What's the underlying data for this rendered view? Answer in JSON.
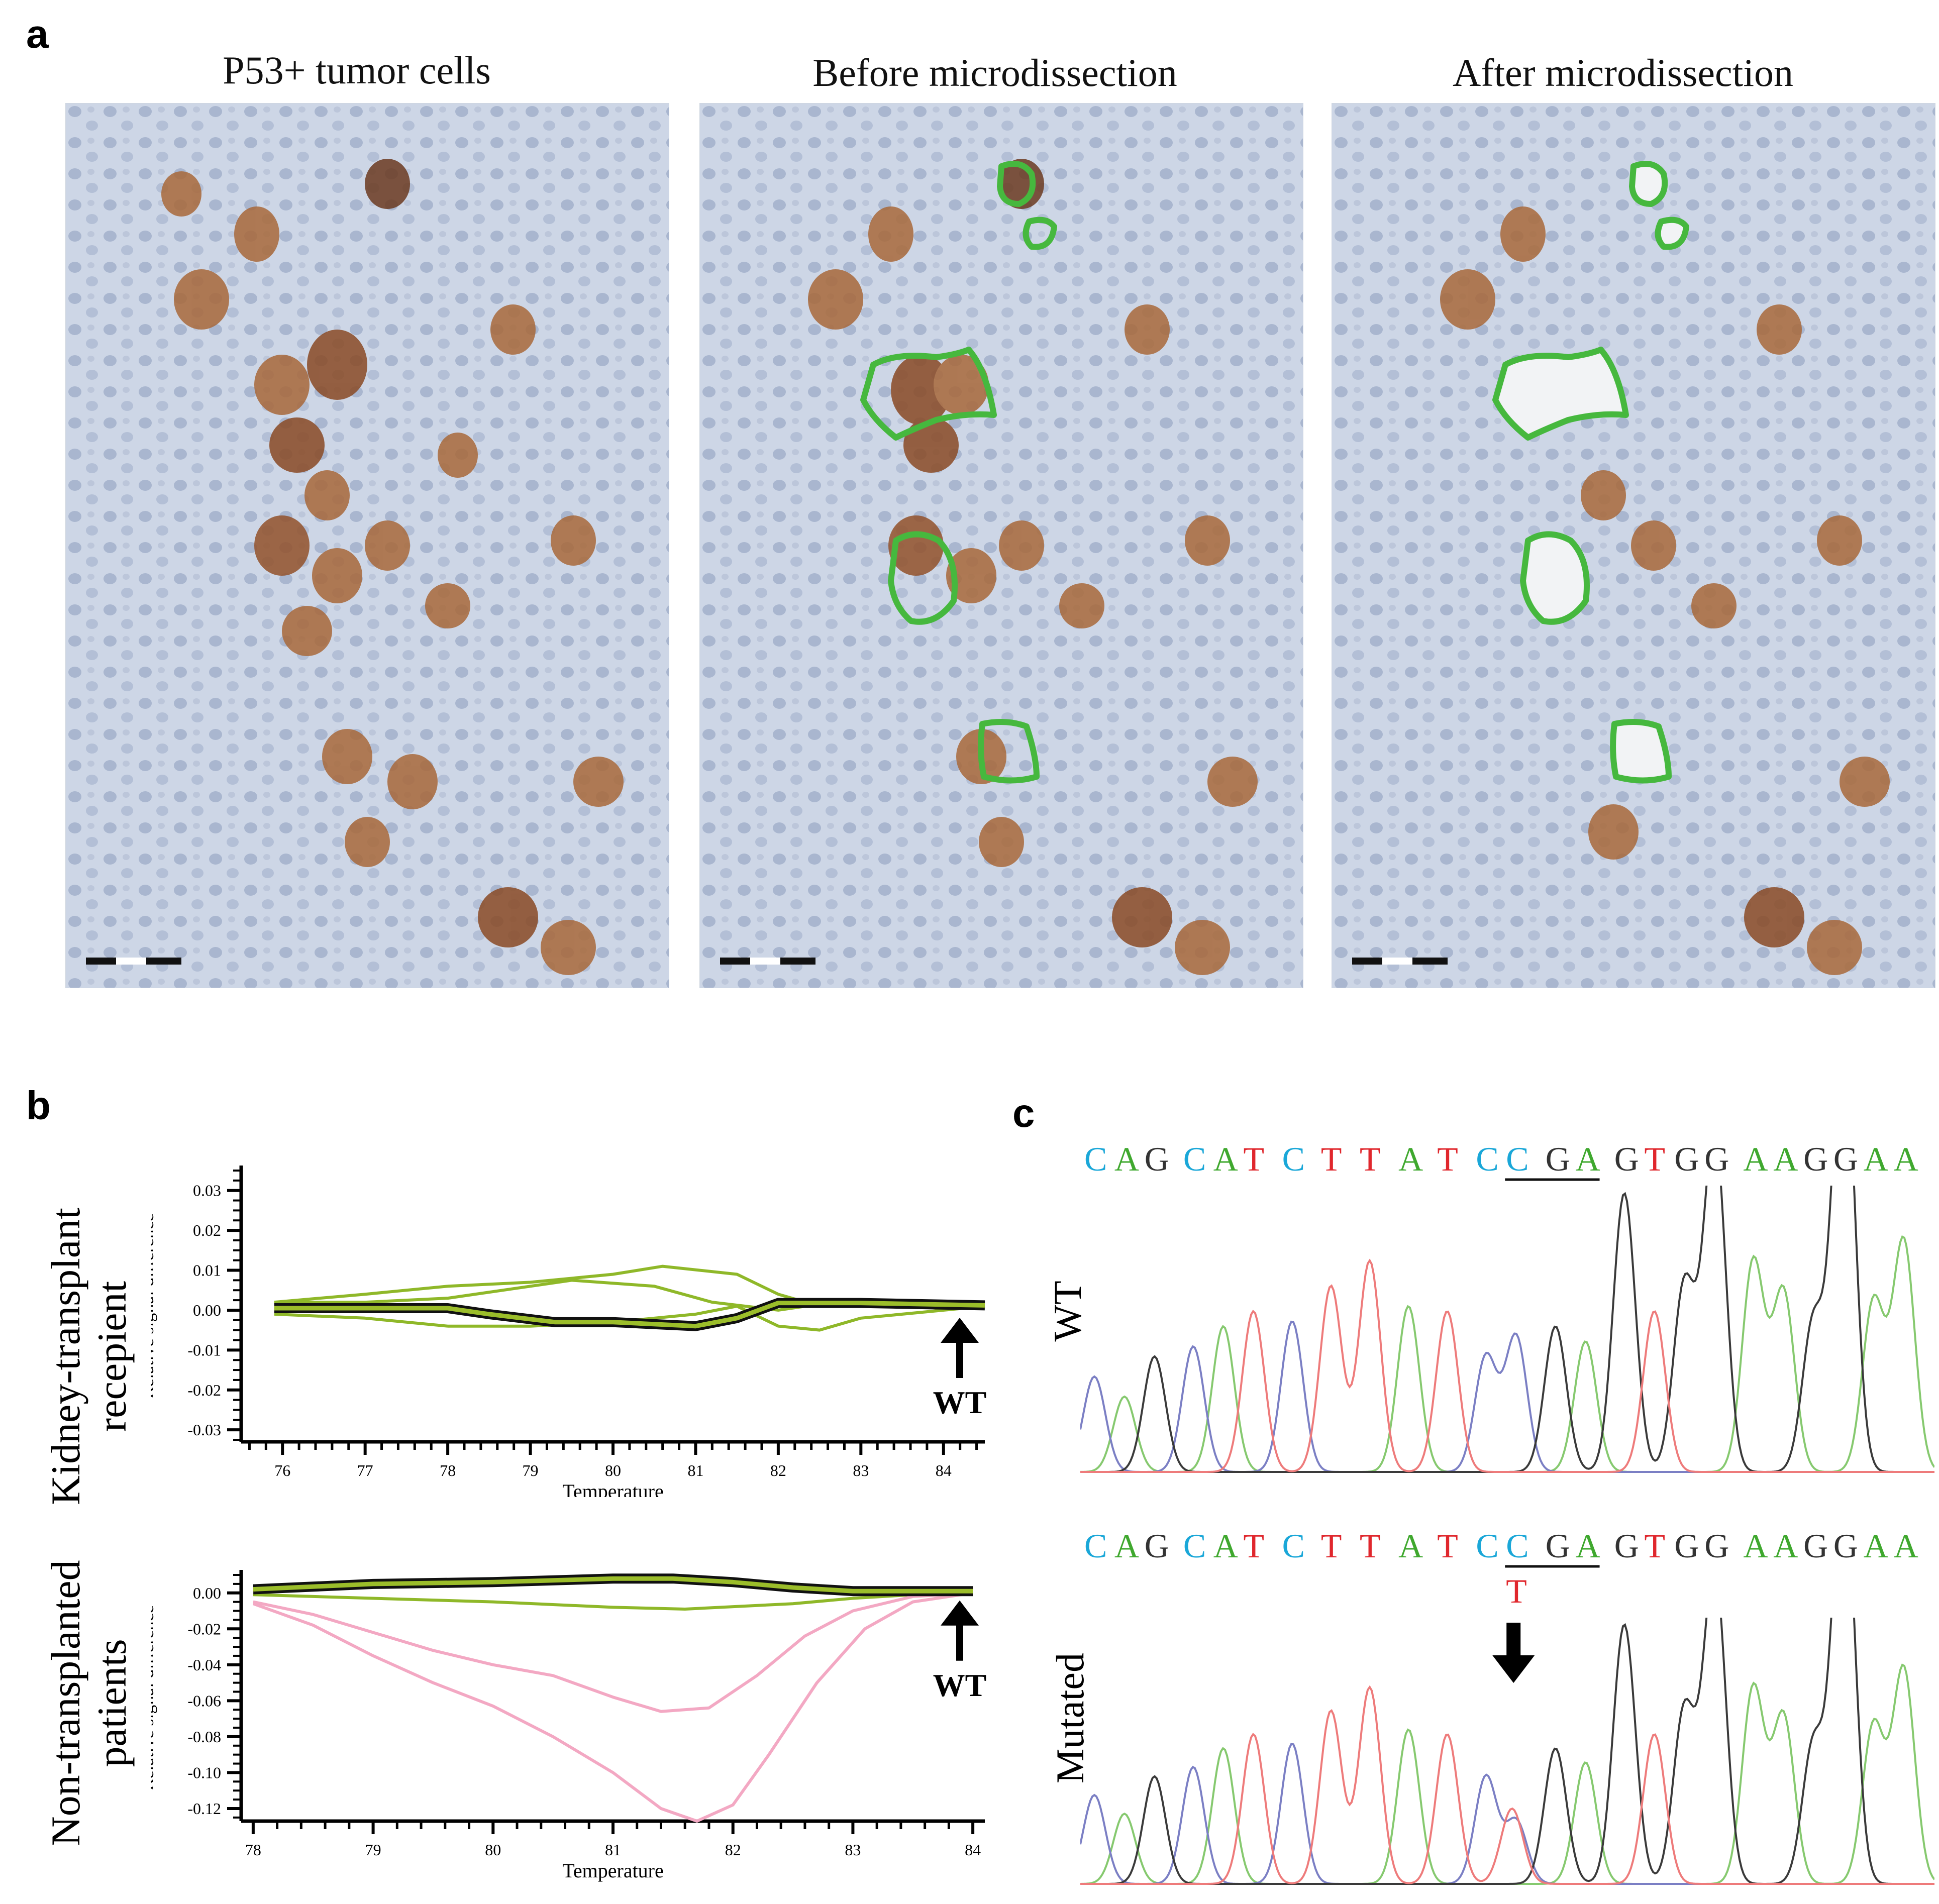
{
  "panel_a": {
    "letter": "a",
    "titles": [
      "P53+ tumor cells",
      "Before microdissection",
      "After microdissection"
    ]
  },
  "panel_b": {
    "letter": "b",
    "top_row_label": "Kidney-transplant recepient",
    "bottom_row_label": "Non-transplanted patients",
    "wt_label": "WT"
  },
  "panel_c": {
    "letter": "c",
    "sequence": [
      "C",
      "A",
      "G",
      "C",
      "A",
      "T",
      "C",
      "T",
      "T",
      "A",
      "T",
      "C",
      "C",
      "G",
      "A",
      "G",
      "T",
      "G",
      "G",
      "A",
      "A",
      "G",
      "G",
      "A",
      "A"
    ],
    "wt_label": "WT",
    "mutated_label": "Mutated",
    "mutation_base": "T",
    "base_colors": {
      "A": "#3fa82e",
      "C": "#1aa7d8",
      "G": "#333333",
      "T": "#e0272d"
    }
  },
  "chart_data": [
    {
      "type": "line",
      "ylabel": "Relative signal difference",
      "xlabel": "Temperature",
      "xlim": [
        75.5,
        84.5
      ],
      "ylim": [
        -0.033,
        0.035
      ],
      "x_ticks": [
        "76",
        "77",
        "78",
        "79",
        "80",
        "81",
        "82",
        "83",
        "84"
      ],
      "y_ticks": [
        "0.03",
        "0.02",
        "0.01",
        "0.00",
        "-0.01",
        "-0.02",
        "-0.03"
      ],
      "series": [
        {
          "color": "#8fb829",
          "x": [
            75.9,
            77,
            78,
            79,
            80,
            80.6,
            81.5,
            82,
            82.5,
            83,
            84.5
          ],
          "y": [
            0.002,
            0.004,
            0.006,
            0.007,
            0.009,
            0.011,
            0.009,
            0.004,
            0.001,
            0.001,
            0.001
          ]
        },
        {
          "color": "#8fb829",
          "x": [
            75.9,
            77,
            78,
            79,
            79.5,
            80.5,
            81.2,
            82,
            82.5,
            83,
            84.5
          ],
          "y": [
            0.002,
            0.002,
            0.003,
            0.006,
            0.0075,
            0.006,
            0.002,
            0.0,
            0.0015,
            0.002,
            0.001
          ]
        },
        {
          "color": "#8fb829",
          "x": [
            75.9,
            77,
            78,
            79,
            80,
            81,
            81.5,
            82,
            82.5,
            83,
            84.5
          ],
          "y": [
            -0.001,
            -0.002,
            -0.004,
            -0.004,
            -0.003,
            -0.001,
            0.001,
            -0.004,
            -0.005,
            -0.002,
            0.001
          ]
        },
        {
          "color": "#111111",
          "x": [
            75.9,
            77,
            78,
            78.5,
            79.3,
            80,
            81,
            81.5,
            82,
            83,
            84.5
          ],
          "y": [
            0.0005,
            0.0005,
            0.0005,
            -0.001,
            -0.003,
            -0.003,
            -0.004,
            -0.002,
            0.0018,
            0.0018,
            0.0012
          ]
        }
      ]
    },
    {
      "type": "line",
      "ylabel": "Relative signal difference",
      "xlabel": "Temperature",
      "xlim": [
        77.9,
        84.1
      ],
      "ylim": [
        -0.127,
        0.01
      ],
      "x_ticks": [
        "78",
        "79",
        "80",
        "81",
        "82",
        "83",
        "84"
      ],
      "y_ticks": [
        "0.00",
        "-0.02",
        "-0.04",
        "-0.06",
        "-0.08",
        "-0.10",
        "-0.12"
      ],
      "series": [
        {
          "color": "#8fb829",
          "x": [
            78,
            79,
            80,
            81,
            81.6,
            82.5,
            83,
            83.5,
            84
          ],
          "y": [
            -0.001,
            -0.003,
            -0.005,
            -0.008,
            -0.009,
            -0.006,
            -0.003,
            -0.001,
            0.0
          ]
        },
        {
          "color": "#f3a8c3",
          "x": [
            78,
            78.5,
            79,
            79.5,
            80,
            80.5,
            81,
            81.4,
            81.8,
            82.2,
            82.6,
            83,
            83.5,
            84
          ],
          "y": [
            -0.005,
            -0.012,
            -0.022,
            -0.032,
            -0.04,
            -0.046,
            -0.058,
            -0.066,
            -0.064,
            -0.046,
            -0.024,
            -0.01,
            -0.002,
            0.0
          ]
        },
        {
          "color": "#f3a8c3",
          "x": [
            78,
            78.5,
            79,
            79.5,
            80,
            80.5,
            81,
            81.4,
            81.7,
            82,
            82.3,
            82.7,
            83.1,
            83.5,
            84
          ],
          "y": [
            -0.006,
            -0.018,
            -0.035,
            -0.05,
            -0.063,
            -0.08,
            -0.1,
            -0.12,
            -0.127,
            -0.118,
            -0.09,
            -0.05,
            -0.02,
            -0.005,
            0.0
          ]
        },
        {
          "color": "#111111",
          "x": [
            78,
            79,
            80,
            81,
            81.5,
            82,
            82.5,
            83,
            83.5,
            84
          ],
          "y": [
            0.002,
            0.005,
            0.006,
            0.008,
            0.008,
            0.006,
            0.003,
            0.001,
            0.001,
            0.001
          ]
        }
      ]
    }
  ]
}
